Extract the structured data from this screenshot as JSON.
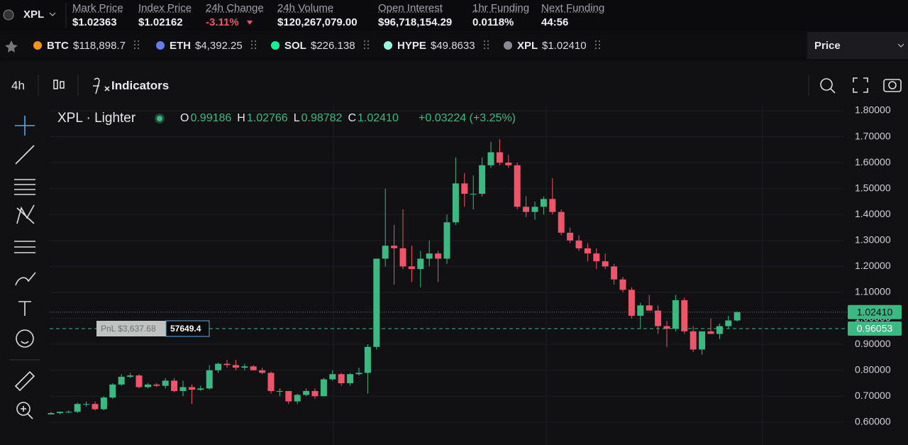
{
  "header": {
    "symbol": "XPL",
    "stats": [
      {
        "label": "Mark Price",
        "value": "$1.02363"
      },
      {
        "label": "Index Price",
        "value": "$1.02162"
      },
      {
        "label": "24h Change",
        "value": "-3.11%",
        "color": "#f0546a"
      },
      {
        "label": "24h Volume",
        "value": "$120,267,079.00"
      },
      {
        "label": "Open Interest",
        "value": "$96,718,154.29"
      },
      {
        "label": "1hr Funding",
        "value": "0.0118%"
      },
      {
        "label": "Next Funding",
        "value": "44:56"
      }
    ]
  },
  "tickers": [
    {
      "symbol": "BTC",
      "price": "$118,898.7",
      "icon_color": "#f7931a"
    },
    {
      "symbol": "ETH",
      "price": "$4,392.25",
      "icon_color": "#627eea"
    },
    {
      "symbol": "SOL",
      "price": "$226.138",
      "icon_color": "#14f195"
    },
    {
      "symbol": "HYPE",
      "price": "$49.8633",
      "icon_color": "#97fce4"
    },
    {
      "symbol": "XPL",
      "price": "$1.02410",
      "icon_color": "#8a8a95"
    }
  ],
  "price_selector": "Price",
  "toolbar": {
    "interval": "4h",
    "indicators": "Indicators"
  },
  "chart_data": {
    "type": "candlestick",
    "title": "XPL · Lighter",
    "ohlc_readout": [
      {
        "key": "O",
        "value": "0.99186"
      },
      {
        "key": "H",
        "value": "1.02766"
      },
      {
        "key": "L",
        "value": "0.98782"
      },
      {
        "key": "C",
        "value": "1.02410"
      }
    ],
    "change": "+0.03224 (+3.25%)",
    "up_color": "#3cb882",
    "down_color": "#f0546a",
    "ylim": [
      0.512,
      1.822
    ],
    "yticks": [
      {
        "value": 0.6,
        "label": "0.60000"
      },
      {
        "value": 0.7,
        "label": "0.70000"
      },
      {
        "value": 0.8,
        "label": "0.80000"
      },
      {
        "value": 0.9,
        "label": "0.90000"
      },
      {
        "value": 1.0,
        "label": "1.00000"
      },
      {
        "value": 1.1,
        "label": "1.10000"
      },
      {
        "value": 1.2,
        "label": "1.20000"
      },
      {
        "value": 1.3,
        "label": "1.30000"
      },
      {
        "value": 1.4,
        "label": "1.40000"
      },
      {
        "value": 1.5,
        "label": "1.50000"
      },
      {
        "value": 1.6,
        "label": "1.60000"
      },
      {
        "value": 1.7,
        "label": "1.70000"
      },
      {
        "value": 1.8,
        "label": "1.80000"
      }
    ],
    "grid": true,
    "open": [
      0.63,
      0.635,
      0.64,
      0.64,
      0.67,
      0.67,
      0.65,
      0.695,
      0.745,
      0.775,
      0.78,
      0.735,
      0.745,
      0.74,
      0.76,
      0.72,
      0.735,
      0.725,
      0.73,
      0.8,
      0.825,
      0.82,
      0.81,
      0.815,
      0.8,
      0.79,
      0.72,
      0.72,
      0.68,
      0.705,
      0.72,
      0.7,
      0.765,
      0.785,
      0.75,
      0.785,
      0.79,
      0.89,
      1.23,
      1.28,
      1.27,
      1.2,
      1.19,
      1.23,
      1.25,
      1.23,
      1.37,
      1.52,
      1.48,
      1.48,
      1.59,
      1.64,
      1.6,
      1.59,
      1.43,
      1.41,
      1.43,
      1.46,
      1.41,
      1.33,
      1.3,
      1.27,
      1.25,
      1.22,
      1.2,
      1.15,
      1.11,
      1.01,
      1.05,
      1.03,
      0.97,
      0.96,
      1.07,
      0.95,
      0.88,
      0.95,
      0.94,
      0.97,
      0.99186
    ],
    "high": [
      0.64,
      0.64,
      0.645,
      0.675,
      0.68,
      0.68,
      0.7,
      0.75,
      0.785,
      0.79,
      0.785,
      0.75,
      0.75,
      0.77,
      0.77,
      0.76,
      0.745,
      0.74,
      0.82,
      0.83,
      0.84,
      0.84,
      0.825,
      0.82,
      0.81,
      0.795,
      0.73,
      0.72,
      0.71,
      0.73,
      0.73,
      0.77,
      0.8,
      0.79,
      0.79,
      0.81,
      0.9,
      1.23,
      1.5,
      1.36,
      1.42,
      1.28,
      1.26,
      1.3,
      1.26,
      1.4,
      1.62,
      1.56,
      1.55,
      1.62,
      1.68,
      1.69,
      1.63,
      1.6,
      1.47,
      1.45,
      1.47,
      1.54,
      1.42,
      1.35,
      1.32,
      1.29,
      1.27,
      1.25,
      1.21,
      1.16,
      1.12,
      1.06,
      1.09,
      1.05,
      0.99,
      1.09,
      1.08,
      0.97,
      0.95,
      1.0,
      0.98,
      1.01,
      1.02766
    ],
    "low": [
      0.63,
      0.63,
      0.635,
      0.635,
      0.66,
      0.645,
      0.645,
      0.69,
      0.74,
      0.77,
      0.73,
      0.73,
      0.735,
      0.73,
      0.715,
      0.7,
      0.67,
      0.72,
      0.725,
      0.79,
      0.81,
      0.8,
      0.8,
      0.8,
      0.785,
      0.71,
      0.7,
      0.67,
      0.67,
      0.7,
      0.69,
      0.7,
      0.76,
      0.74,
      0.74,
      0.78,
      0.71,
      0.88,
      1.2,
      1.13,
      1.19,
      1.14,
      1.12,
      1.2,
      1.14,
      1.21,
      1.36,
      1.43,
      1.42,
      1.47,
      1.58,
      1.59,
      1.58,
      1.42,
      1.39,
      1.38,
      1.4,
      1.4,
      1.32,
      1.29,
      1.26,
      1.22,
      1.19,
      1.19,
      1.13,
      1.1,
      1.0,
      0.96,
      1.03,
      0.94,
      0.89,
      0.95,
      0.94,
      0.87,
      0.86,
      0.94,
      0.92,
      0.96,
      0.98782
    ],
    "close": [
      0.635,
      0.64,
      0.64,
      0.67,
      0.67,
      0.65,
      0.695,
      0.745,
      0.775,
      0.78,
      0.735,
      0.745,
      0.74,
      0.76,
      0.72,
      0.735,
      0.725,
      0.73,
      0.8,
      0.825,
      0.82,
      0.81,
      0.815,
      0.8,
      0.79,
      0.72,
      0.72,
      0.68,
      0.705,
      0.72,
      0.7,
      0.765,
      0.785,
      0.75,
      0.785,
      0.79,
      0.89,
      1.23,
      1.28,
      1.27,
      1.2,
      1.19,
      1.23,
      1.25,
      1.23,
      1.37,
      1.52,
      1.48,
      1.48,
      1.59,
      1.64,
      1.6,
      1.59,
      1.43,
      1.41,
      1.43,
      1.46,
      1.41,
      1.33,
      1.3,
      1.27,
      1.25,
      1.22,
      1.2,
      1.15,
      1.11,
      1.01,
      1.05,
      1.03,
      0.97,
      0.96,
      1.07,
      0.95,
      0.88,
      0.95,
      0.94,
      0.97,
      0.99186,
      1.0241
    ],
    "price_lines": [
      {
        "value": 1.0241,
        "label": "1.02410",
        "style": "dotted"
      },
      {
        "value": 0.96053,
        "label": "0.96053",
        "style": "dashed"
      }
    ],
    "position": {
      "pnl": "PnL $3,637.68",
      "size": "57649.4"
    }
  }
}
